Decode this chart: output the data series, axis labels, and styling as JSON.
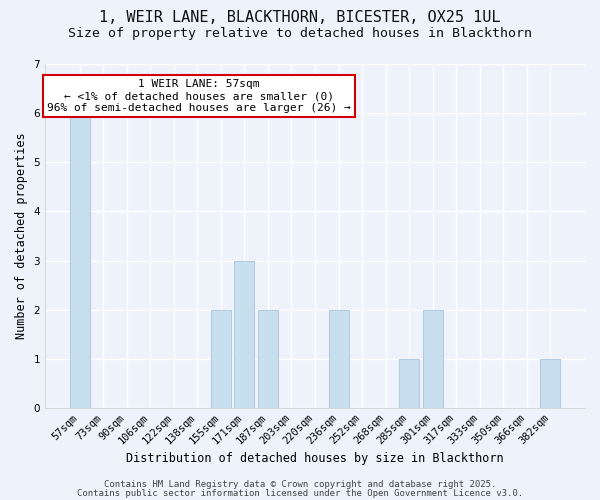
{
  "title": "1, WEIR LANE, BLACKTHORN, BICESTER, OX25 1UL",
  "subtitle": "Size of property relative to detached houses in Blackthorn",
  "xlabel": "Distribution of detached houses by size in Blackthorn",
  "ylabel": "Number of detached properties",
  "footer_line1": "Contains HM Land Registry data © Crown copyright and database right 2025.",
  "footer_line2": "Contains public sector information licensed under the Open Government Licence v3.0.",
  "categories": [
    "57sqm",
    "73sqm",
    "90sqm",
    "106sqm",
    "122sqm",
    "138sqm",
    "155sqm",
    "171sqm",
    "187sqm",
    "203sqm",
    "220sqm",
    "236sqm",
    "252sqm",
    "268sqm",
    "285sqm",
    "301sqm",
    "317sqm",
    "333sqm",
    "350sqm",
    "366sqm",
    "382sqm"
  ],
  "values": [
    6,
    0,
    0,
    0,
    0,
    0,
    2,
    3,
    2,
    0,
    0,
    2,
    0,
    0,
    1,
    2,
    0,
    0,
    0,
    0,
    1
  ],
  "bar_color": "#c8dff0",
  "bar_edge_color": "#b0c8e0",
  "ylim": [
    0,
    7
  ],
  "yticks": [
    0,
    1,
    2,
    3,
    4,
    5,
    6,
    7
  ],
  "property_bar_index": 0,
  "annotation_title": "1 WEIR LANE: 57sqm",
  "annotation_line1": "← <1% of detached houses are smaller (0)",
  "annotation_line2": "96% of semi-detached houses are larger (26) →",
  "annotation_box_facecolor": "#ffffff",
  "annotation_box_edgecolor": "#cc0000",
  "background_color": "#eef2fb",
  "plot_background_color": "#eef2fb",
  "grid_color": "#ffffff",
  "title_fontsize": 11,
  "subtitle_fontsize": 9.5,
  "axis_label_fontsize": 8.5,
  "tick_fontsize": 7.5,
  "annotation_fontsize": 8,
  "footer_fontsize": 6.5
}
